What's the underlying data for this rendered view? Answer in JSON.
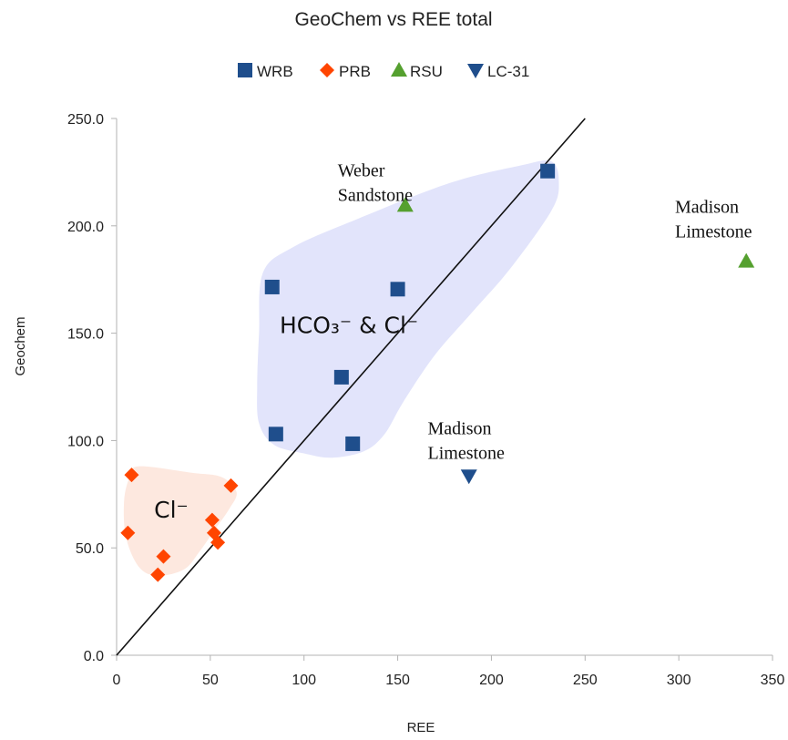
{
  "chart_data": {
    "type": "scatter",
    "title": "GeoChem vs REE total",
    "xlabel": "REE",
    "ylabel": "Geochem",
    "xlim": [
      0,
      350
    ],
    "ylim": [
      0,
      250
    ],
    "x_ticks": [
      "0",
      "50",
      "100",
      "150",
      "200",
      "250",
      "300",
      "350"
    ],
    "y_ticks": [
      "0.0",
      "50.0",
      "100.0",
      "150.0",
      "200.0",
      "250.0"
    ],
    "grid": false,
    "legend_position": "top",
    "series": [
      {
        "name": "WRB",
        "marker": "square",
        "color": "#1f4e8c",
        "points": [
          [
            83,
            171.5
          ],
          [
            85,
            103
          ],
          [
            120,
            129.5
          ],
          [
            126,
            98.5
          ],
          [
            150,
            170.5
          ],
          [
            230,
            225.5
          ]
        ]
      },
      {
        "name": "PRB",
        "marker": "diamond",
        "color": "#ff4500",
        "points": [
          [
            8,
            84
          ],
          [
            6,
            57
          ],
          [
            25,
            46
          ],
          [
            22,
            37.5
          ],
          [
            51,
            63
          ],
          [
            52,
            57
          ],
          [
            54,
            52.5
          ],
          [
            61,
            79
          ]
        ]
      },
      {
        "name": "RSU",
        "marker": "triangle-up",
        "color": "#55a02f",
        "points": [
          [
            154,
            209.5
          ],
          [
            336,
            183.5
          ]
        ]
      },
      {
        "name": "LC-31",
        "marker": "triangle-down",
        "color": "#1f4e8c",
        "points": [
          [
            188,
            83.5
          ]
        ]
      }
    ],
    "reference_line": {
      "from": [
        0,
        0
      ],
      "to": [
        250,
        250
      ]
    },
    "annotations": [
      {
        "lines": [
          "Weber",
          "Sandstone"
        ],
        "x": 118,
        "y": 223,
        "style": "serif"
      },
      {
        "lines": [
          "Madison",
          "Limestone"
        ],
        "x": 298,
        "y": 206,
        "style": "serif"
      },
      {
        "lines": [
          "Madison",
          "Limestone"
        ],
        "x": 166,
        "y": 103,
        "style": "serif"
      },
      {
        "lines": [
          "HCO₃⁻ & Cl⁻"
        ],
        "x": 87,
        "y": 150,
        "style": "sans"
      },
      {
        "lines": [
          "Cl⁻"
        ],
        "x": 20,
        "y": 64,
        "style": "sans"
      }
    ],
    "regions": [
      {
        "name": "HCO3-Cl-region",
        "fill": "#e2e4fb",
        "polygon": [
          [
            94,
            190
          ],
          [
            128,
            203
          ],
          [
            178,
            220
          ],
          [
            215,
            228
          ],
          [
            232,
            230
          ],
          [
            236,
            220
          ],
          [
            232,
            207
          ],
          [
            210,
            180
          ],
          [
            190,
            160
          ],
          [
            170,
            140
          ],
          [
            153,
            118
          ],
          [
            143,
            103
          ],
          [
            132,
            95
          ],
          [
            115,
            92
          ],
          [
            100,
            94
          ],
          [
            84,
            98
          ],
          [
            76,
            108
          ],
          [
            75,
            125
          ],
          [
            76,
            150
          ],
          [
            78,
            178
          ]
        ]
      },
      {
        "name": "Cl-region",
        "fill": "#fde8df",
        "polygon": [
          [
            12,
            88
          ],
          [
            40,
            85
          ],
          [
            56,
            83
          ],
          [
            64,
            76
          ],
          [
            60,
            68
          ],
          [
            52,
            58
          ],
          [
            44,
            48
          ],
          [
            36,
            40
          ],
          [
            22,
            37
          ],
          [
            12,
            41
          ],
          [
            5,
            55
          ],
          [
            4,
            72
          ],
          [
            7,
            83
          ]
        ]
      }
    ]
  }
}
